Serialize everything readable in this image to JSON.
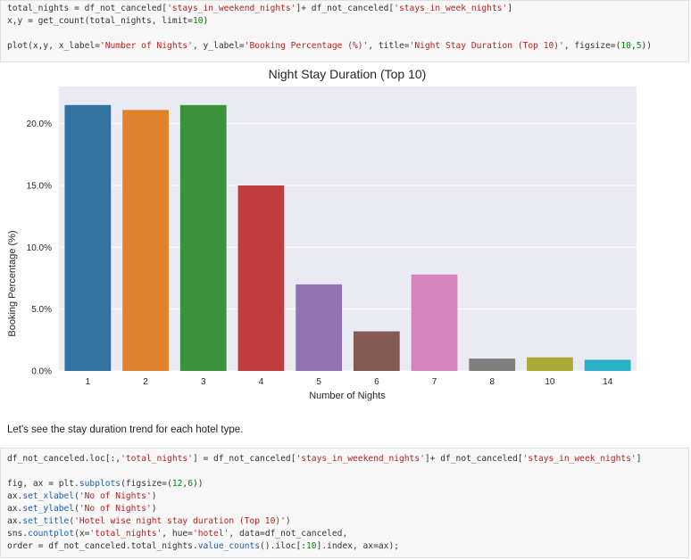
{
  "cell1": {
    "lines": [
      [
        {
          "t": "total_nights = df_not_canceled["
        },
        {
          "t": "'stays_in_weekend_nights'",
          "c": "s"
        },
        {
          "t": "]+ df_not_canceled["
        },
        {
          "t": "'stays_in_week_nights'",
          "c": "s"
        },
        {
          "t": "]"
        }
      ],
      [
        {
          "t": "x,y = get_count(total_nights, limit="
        },
        {
          "t": "10",
          "c": "n"
        },
        {
          "t": ")"
        }
      ],
      [],
      [
        {
          "t": "plot(x,y, x_label="
        },
        {
          "t": "'Number of Nights'",
          "c": "s"
        },
        {
          "t": ", y_label="
        },
        {
          "t": "'Booking Percentage (%)'",
          "c": "s"
        },
        {
          "t": ", title="
        },
        {
          "t": "'Night Stay Duration (Top 10)'",
          "c": "s"
        },
        {
          "t": ", figsize=("
        },
        {
          "t": "10",
          "c": "n"
        },
        {
          "t": ","
        },
        {
          "t": "5",
          "c": "n"
        },
        {
          "t": "))"
        }
      ]
    ]
  },
  "chart_data": {
    "type": "bar",
    "title": "Night Stay Duration (Top 10)",
    "xlabel": "Number of Nights",
    "ylabel": "Booking Percentage (%)",
    "categories": [
      "1",
      "2",
      "3",
      "4",
      "5",
      "6",
      "7",
      "8",
      "10",
      "14"
    ],
    "values": [
      21.5,
      21.1,
      21.5,
      15.0,
      7.0,
      3.2,
      7.8,
      1.0,
      1.1,
      0.9
    ],
    "colors": [
      "#3274a1",
      "#e1812c",
      "#3a923a",
      "#c03d3e",
      "#9372b2",
      "#845b53",
      "#d684bd",
      "#7f7f7f",
      "#a9aa35",
      "#2ab0c5"
    ],
    "ylim": [
      0,
      23
    ],
    "yticks": [
      0,
      5,
      10,
      15,
      20
    ],
    "ytick_labels": [
      "0.0%",
      "5.0%",
      "10.0%",
      "15.0%",
      "20.0%"
    ],
    "grid": true,
    "plot_background": "#eaeaf2"
  },
  "markdown": {
    "text": "Let's see the stay duration trend for each hotel type."
  },
  "cell2": {
    "lines": [
      [
        {
          "t": "df_not_canceled.loc[:,"
        },
        {
          "t": "'total_nights'",
          "c": "s"
        },
        {
          "t": "] = df_not_canceled["
        },
        {
          "t": "'stays_in_weekend_nights'",
          "c": "s"
        },
        {
          "t": "]+ df_not_canceled["
        },
        {
          "t": "'stays_in_week_nights'",
          "c": "s"
        },
        {
          "t": "]"
        }
      ],
      [],
      [
        {
          "t": "fig, ax = plt."
        },
        {
          "t": "subplots",
          "c": "k"
        },
        {
          "t": "(figsize=("
        },
        {
          "t": "12",
          "c": "n"
        },
        {
          "t": ","
        },
        {
          "t": "6",
          "c": "n"
        },
        {
          "t": "))"
        }
      ],
      [
        {
          "t": "ax."
        },
        {
          "t": "set_xlabel",
          "c": "k"
        },
        {
          "t": "("
        },
        {
          "t": "'No of Nights'",
          "c": "s"
        },
        {
          "t": ")"
        }
      ],
      [
        {
          "t": "ax."
        },
        {
          "t": "set_ylabel",
          "c": "k"
        },
        {
          "t": "("
        },
        {
          "t": "'No of Nights'",
          "c": "s"
        },
        {
          "t": ")"
        }
      ],
      [
        {
          "t": "ax."
        },
        {
          "t": "set_title",
          "c": "k"
        },
        {
          "t": "("
        },
        {
          "t": "'Hotel wise night stay duration (Top 10)'",
          "c": "s"
        },
        {
          "t": ")"
        }
      ],
      [
        {
          "t": "sns."
        },
        {
          "t": "countplot",
          "c": "k"
        },
        {
          "t": "(x="
        },
        {
          "t": "'total_nights'",
          "c": "s"
        },
        {
          "t": ", hue="
        },
        {
          "t": "'hotel'",
          "c": "s"
        },
        {
          "t": ", data=df_not_canceled,"
        }
      ],
      [
        {
          "t": "order = df_not_canceled.total_nights."
        },
        {
          "t": "value_counts",
          "c": "k"
        },
        {
          "t": "().iloc[:"
        },
        {
          "t": "10",
          "c": "n"
        },
        {
          "t": "].index, ax=ax);"
        }
      ]
    ]
  }
}
